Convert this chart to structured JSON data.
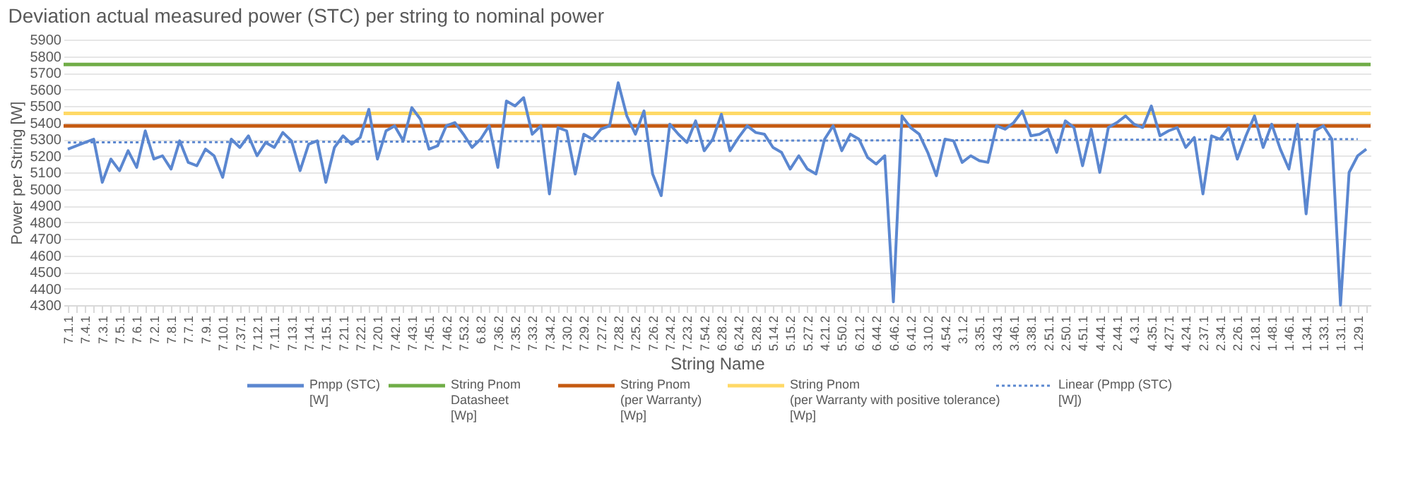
{
  "chart_data": {
    "type": "line",
    "title": "Deviation actual measured power (STC) per string to nominal power",
    "xlabel": "String Name",
    "ylabel": "Power per String [W]",
    "categories": [
      "7.1.1",
      null,
      "7.4.1",
      null,
      "7.3.1",
      null,
      "7.5.1",
      null,
      "7.6.1",
      null,
      "7.2.1",
      null,
      "7.8.1",
      null,
      "7.7.1",
      null,
      "7.9.1",
      null,
      "7.10.1",
      null,
      "7.37.1",
      null,
      "7.12.1",
      null,
      "7.11.1",
      null,
      "7.13.1",
      null,
      "7.14.1",
      null,
      "7.15.1",
      null,
      "7.21.1",
      null,
      "7.22.1",
      null,
      "7.20.1",
      null,
      "7.42.1",
      null,
      "7.43.1",
      null,
      "7.45.1",
      null,
      "7.46.2",
      null,
      "7.53.2",
      null,
      "6.8.2",
      null,
      "7.36.2",
      null,
      "7.35.2",
      null,
      "7.33.2",
      null,
      "7.34.2",
      null,
      "7.30.2",
      null,
      "7.29.2",
      null,
      "7.27.2",
      null,
      "7.28.2",
      null,
      "7.25.2",
      null,
      "7.26.2",
      null,
      "7.24.2",
      null,
      "7.23.2",
      null,
      "7.54.2",
      null,
      "6.28.2",
      null,
      "6.24.2",
      null,
      "5.28.2",
      null,
      "5.14.2",
      null,
      "5.15.2",
      null,
      "5.27.2",
      null,
      "4.21.2",
      null,
      "5.50.2",
      null,
      "6.21.2",
      null,
      "6.44.2",
      null,
      "6.46.2",
      null,
      "6.41.2",
      null,
      "3.10.2",
      null,
      "4.54.2",
      null,
      "3.1.2",
      null,
      "3.35.1",
      null,
      "3.43.1",
      null,
      "3.46.1",
      null,
      "3.38.1",
      null,
      "2.51.1",
      null,
      "2.50.1",
      null,
      "4.51.1",
      null,
      "4.44.1",
      null,
      "2.44.1",
      null,
      "4.3.1",
      null,
      "4.35.1",
      null,
      "4.27.1",
      null,
      "4.24.1",
      null,
      "2.37.1",
      null,
      "2.34.1",
      null,
      "2.26.1",
      null,
      "2.18.1",
      null,
      "1.48.1",
      null,
      "1.46.1",
      null,
      "1.34.1",
      null,
      "1.33.1",
      null,
      "1.31.1",
      null,
      "1.29.1",
      null
    ],
    "ylim": [
      4300,
      5900
    ],
    "yticks": [
      4300,
      4400,
      4500,
      4600,
      4700,
      4800,
      4900,
      5000,
      5100,
      5200,
      5300,
      5400,
      5500,
      5600,
      5700,
      5800,
      5900
    ],
    "grid": "y",
    "legend": "bottom",
    "series": [
      {
        "name": "Pmpp (STC)\n[W]",
        "color": "#5b87d0",
        "values": [
          5240,
          5260,
          5280,
          5300,
          5040,
          5180,
          5110,
          5230,
          5130,
          5350,
          5180,
          5200,
          5120,
          5290,
          5160,
          5140,
          5240,
          5200,
          5070,
          5300,
          5250,
          5320,
          5200,
          5280,
          5250,
          5340,
          5290,
          5110,
          5270,
          5290,
          5040,
          5250,
          5320,
          5270,
          5310,
          5480,
          5180,
          5350,
          5380,
          5290,
          5490,
          5420,
          5240,
          5260,
          5380,
          5400,
          5330,
          5250,
          5300,
          5380,
          5130,
          5530,
          5500,
          5550,
          5330,
          5380,
          4970,
          5370,
          5350,
          5090,
          5330,
          5300,
          5360,
          5380,
          5640,
          5440,
          5330,
          5470,
          5090,
          4960,
          5390,
          5330,
          5280,
          5410,
          5230,
          5300,
          5450,
          5230,
          5310,
          5380,
          5340,
          5330,
          5250,
          5220,
          5120,
          5200,
          5120,
          5090,
          5300,
          5380,
          5230,
          5330,
          5300,
          5190,
          5150,
          5200,
          4320,
          5440,
          5370,
          5330,
          5220,
          5080,
          5300,
          5290,
          5160,
          5200,
          5170,
          5160,
          5380,
          5360,
          5400,
          5470,
          5320,
          5330,
          5360,
          5220,
          5410,
          5370,
          5140,
          5360,
          5100,
          5370,
          5400,
          5440,
          5390,
          5370,
          5500,
          5320,
          5350,
          5370,
          5250,
          5310,
          4970,
          5320,
          5300,
          5370,
          5180,
          5320,
          5440,
          5250,
          5390,
          5240,
          5120,
          5390,
          4850,
          5350,
          5380,
          5300,
          4300,
          5100,
          5200,
          5240
        ]
      },
      {
        "name": "Linear (Pmpp (STC)\n[W])",
        "type": "line",
        "line_style": "dotted",
        "color": "#5b87d0",
        "x": [
          "7.1.1",
          "1.29.1"
        ],
        "values": [
          5280,
          5300
        ]
      }
    ],
    "ref_lines": [
      {
        "axis": "y",
        "value": 5750,
        "label": "String Pnom\nDatasheet\n[Wp]",
        "color": "#70ad47"
      },
      {
        "axis": "y",
        "value": 5380,
        "label": "String Pnom\n(per Warranty)\n[Wp]",
        "color": "#c55a11"
      },
      {
        "axis": "y",
        "value": 5455,
        "label": "String Pnom\n(per Warranty with positive tolerance)\n[Wp]",
        "color": "#ffd966"
      }
    ]
  }
}
